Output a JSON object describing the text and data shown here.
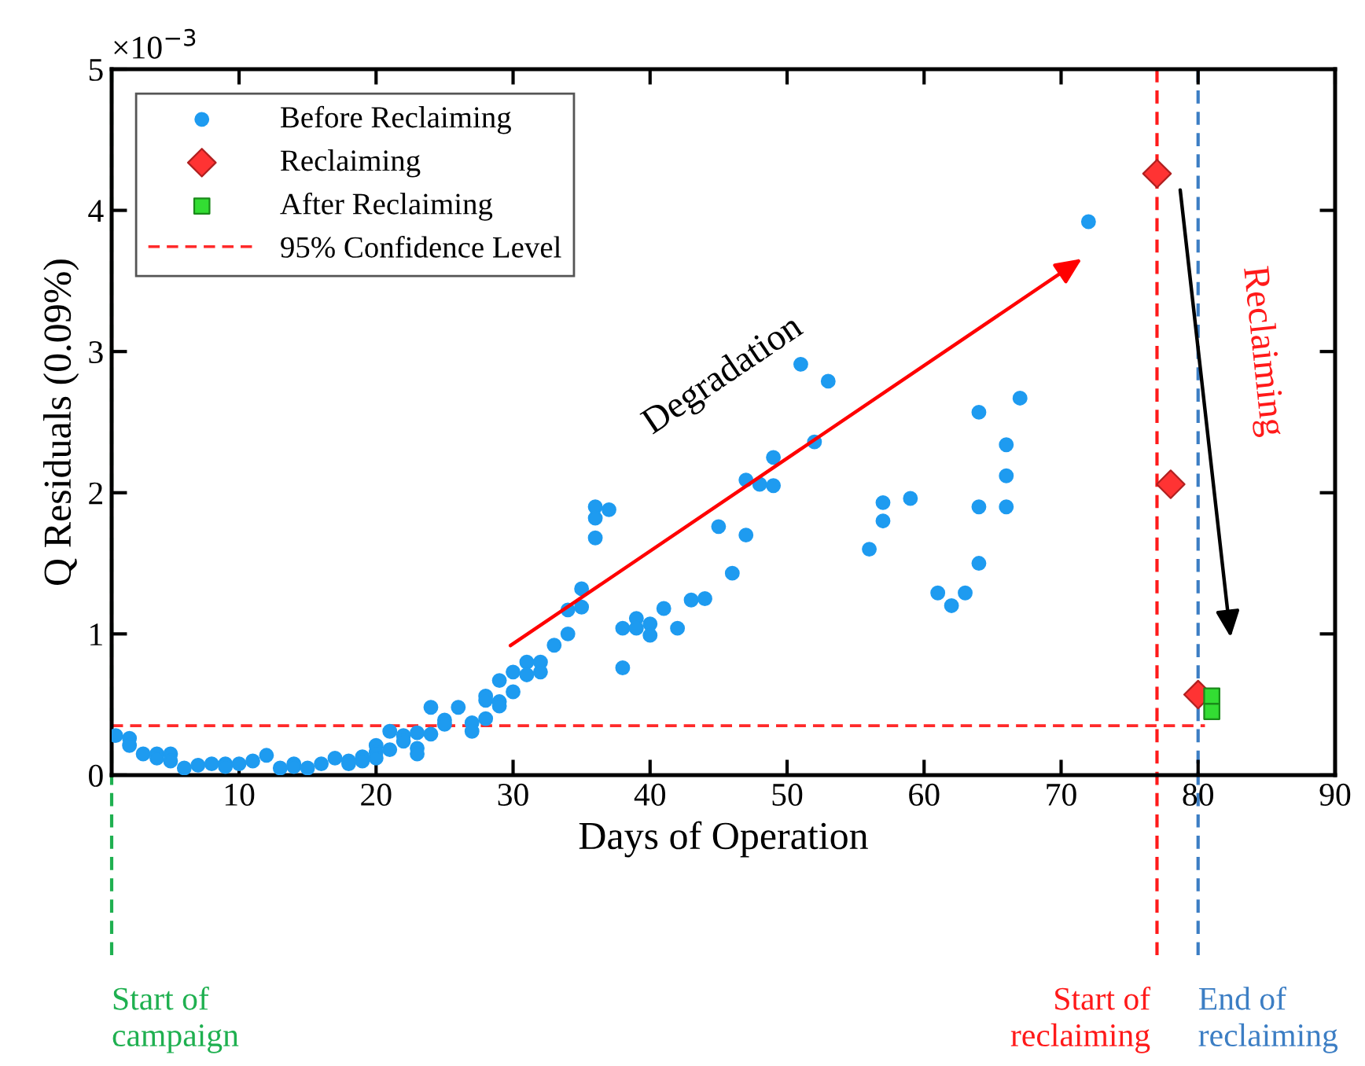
{
  "chart_data": {
    "type": "scatter",
    "xlabel": "Days of Operation",
    "ylabel": "Q Residuals (0.09%)",
    "xlim": [
      0.7,
      90
    ],
    "xticks": [
      10,
      20,
      30,
      40,
      50,
      60,
      70,
      80,
      90
    ],
    "ylim": [
      0,
      5
    ],
    "yticks": [
      0,
      1,
      2,
      3,
      4,
      5
    ],
    "grid": false,
    "legend": "top left",
    "annotations": [
      "×10$^{−3}$",
      "Degradation",
      "Reclaiming"
    ],
    "ref_lines": [
      {
        "axis": "x",
        "value": 0.7,
        "label": "Start of\ncampaign",
        "color": "#1fb050",
        "line_style": "dashed"
      },
      {
        "axis": "x",
        "value": 77,
        "label": "Start of\nreclaiming",
        "color": "#ff1a1a",
        "line_style": "dashed"
      },
      {
        "axis": "x",
        "value": 80,
        "label": "End of\nreclaiming",
        "color": "#3c7ec4",
        "line_style": "dashed"
      }
    ],
    "series": [
      {
        "name": "Before Reclaiming",
        "marker": "circle",
        "color": "#1e9bf0",
        "x": [
          1,
          2,
          2,
          3,
          4,
          4,
          5,
          5,
          6,
          7,
          8,
          9,
          9,
          10,
          11,
          12,
          13,
          14,
          14,
          15,
          16,
          17,
          18,
          18,
          19,
          19,
          20,
          20,
          20,
          21,
          21,
          22,
          22,
          23,
          23,
          23,
          24,
          24,
          25,
          25,
          26,
          27,
          27,
          28,
          28,
          28,
          29,
          29,
          29,
          30,
          30,
          31,
          31,
          32,
          32,
          33,
          34,
          34,
          35,
          35,
          36,
          36,
          36,
          37,
          38,
          38,
          39,
          39,
          40,
          40,
          41,
          42,
          43,
          44,
          45,
          46,
          47,
          47,
          48,
          49,
          49,
          51,
          52,
          53,
          56,
          57,
          57,
          59,
          61,
          62,
          63,
          64,
          64,
          64,
          66,
          66,
          66,
          67,
          72
        ],
        "values": [
          0.28,
          0.26,
          0.21,
          0.15,
          0.15,
          0.12,
          0.15,
          0.1,
          0.05,
          0.07,
          0.08,
          0.08,
          0.06,
          0.08,
          0.1,
          0.14,
          0.05,
          0.08,
          0.06,
          0.05,
          0.08,
          0.12,
          0.1,
          0.08,
          0.13,
          0.1,
          0.21,
          0.16,
          0.12,
          0.31,
          0.18,
          0.28,
          0.24,
          0.3,
          0.19,
          0.15,
          0.48,
          0.29,
          0.39,
          0.36,
          0.48,
          0.37,
          0.31,
          0.56,
          0.53,
          0.4,
          0.67,
          0.52,
          0.49,
          0.73,
          0.59,
          0.8,
          0.71,
          0.8,
          0.73,
          0.92,
          1.0,
          1.17,
          1.19,
          1.32,
          1.9,
          1.82,
          1.68,
          1.88,
          1.04,
          0.76,
          1.11,
          1.04,
          1.07,
          0.99,
          1.18,
          1.04,
          1.24,
          1.25,
          1.76,
          1.43,
          2.09,
          1.7,
          2.06,
          2.25,
          2.05,
          2.91,
          2.36,
          2.79,
          1.6,
          1.93,
          1.8,
          1.96,
          1.29,
          1.2,
          1.29,
          2.57,
          1.9,
          1.5,
          2.34,
          2.12,
          1.9,
          2.67,
          3.92
        ]
      },
      {
        "name": "Reclaiming",
        "marker": "diamond",
        "color": "#ff3333",
        "x": [
          77,
          78,
          80
        ],
        "values": [
          4.26,
          2.06,
          0.57
        ]
      },
      {
        "name": "After Reclaiming",
        "marker": "square",
        "color": "#33dd33",
        "x": [
          81,
          81
        ],
        "values": [
          0.56,
          0.45
        ]
      },
      {
        "name": "95% Confidence Level",
        "type": "line",
        "line_style": "dashed",
        "marker": "none",
        "color": "#ff2a2a",
        "x": [
          0.7,
          80.5
        ],
        "values": [
          0.35,
          0.35
        ]
      }
    ]
  }
}
